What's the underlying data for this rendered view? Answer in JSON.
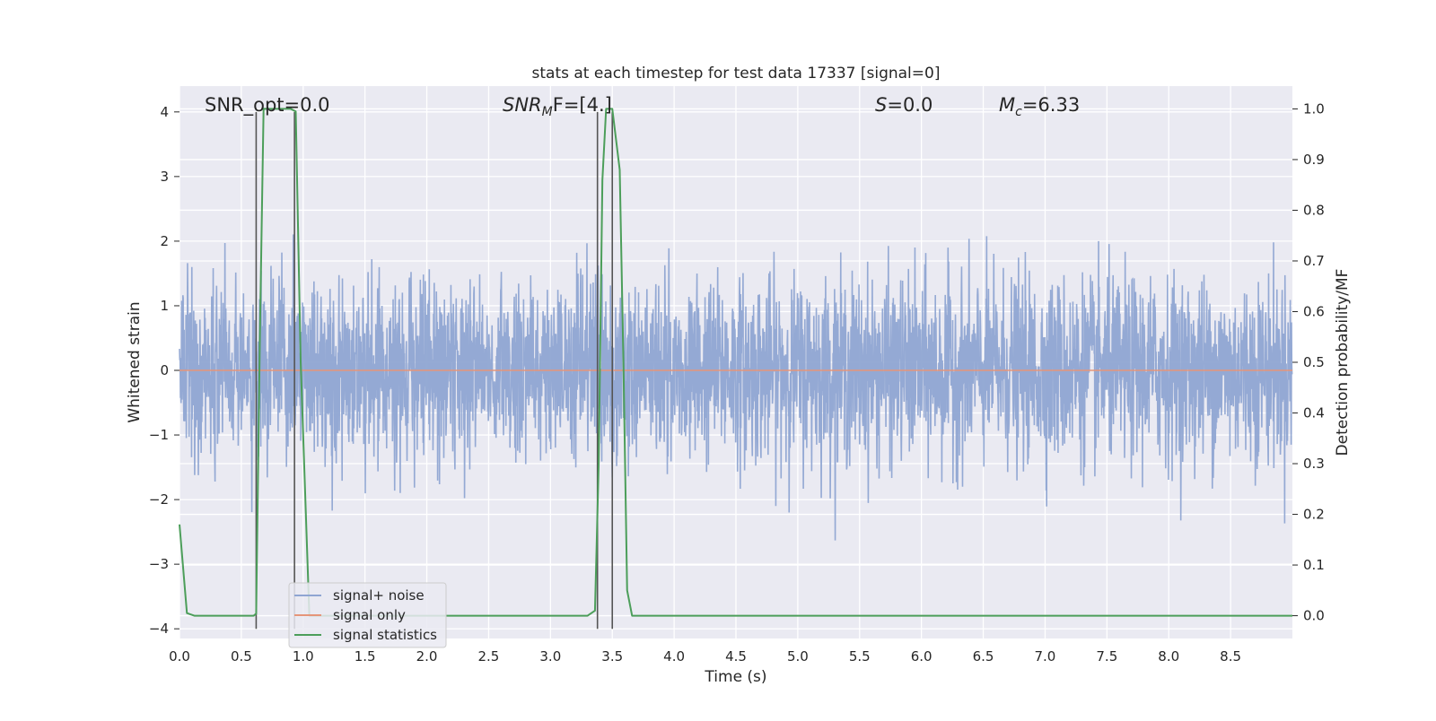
{
  "chart_data": {
    "type": "line",
    "title": "stats at each timestep for test data 17337 [signal=0]",
    "xlabel": "Time (s)",
    "ylabel_left": "Whitened strain",
    "ylabel_right": "Detection probability/MF",
    "xlim": [
      0,
      9.0
    ],
    "ylim_left": [
      -4.15,
      4.4
    ],
    "ylim_right": [
      -0.045,
      1.045
    ],
    "x_ticks": [
      "0.0",
      "0.5",
      "1.0",
      "1.5",
      "2.0",
      "2.5",
      "3.0",
      "3.5",
      "4.0",
      "4.5",
      "5.0",
      "5.5",
      "6.0",
      "6.5",
      "7.0",
      "7.5",
      "8.0",
      "8.5"
    ],
    "y_ticks_left": [
      "4",
      "3",
      "2",
      "1",
      "0",
      "−1",
      "−2",
      "−3",
      "−4"
    ],
    "y_ticks_right": [
      "1.0",
      "0.9",
      "0.8",
      "0.7",
      "0.6",
      "0.5",
      "0.4",
      "0.3",
      "0.2",
      "0.1",
      "0.0"
    ],
    "grid": true,
    "legend_position": "lower-left",
    "annotations": {
      "snr_opt": "SNR_opt=0.0",
      "snr_mf_main": "SNR",
      "snr_mf_sub": "M",
      "snr_mf_tail": "F=[4.]",
      "s_main": "S",
      "s_tail": "=0.0",
      "mc_main": "M",
      "mc_sub": "c",
      "mc_tail": "=6.33"
    },
    "series": [
      {
        "name": "signal+ noise",
        "color": "#8fa5d2",
        "noise_std": 0.7,
        "sample_rate": 400,
        "x_range": [
          0,
          9.0
        ]
      },
      {
        "name": "signal only",
        "color": "#e5957a",
        "constant_value": 0
      },
      {
        "name": "signal statistics",
        "color": "#4c9e5a",
        "x": [
          0.0,
          0.06,
          0.12,
          0.3,
          0.6,
          0.62,
          0.65,
          0.68,
          0.72,
          0.8,
          0.9,
          0.94,
          0.98,
          1.05,
          1.2,
          3.0,
          3.3,
          3.36,
          3.39,
          3.42,
          3.45,
          3.5,
          3.56,
          3.59,
          3.62,
          3.66,
          3.72,
          4.0,
          9.0
        ],
        "y": [
          0.18,
          0.005,
          0.0,
          0.0,
          0.0,
          0.004,
          0.55,
          1.0,
          1.0,
          1.0,
          1.0,
          0.995,
          0.5,
          0.0,
          0.0,
          0.0,
          0.0,
          0.01,
          0.3,
          0.86,
          1.0,
          1.0,
          0.88,
          0.5,
          0.05,
          0.0,
          0.0,
          0.0,
          0.0
        ]
      }
    ],
    "vertical_markers": [
      0.62,
      0.93,
      3.38,
      3.5
    ]
  }
}
